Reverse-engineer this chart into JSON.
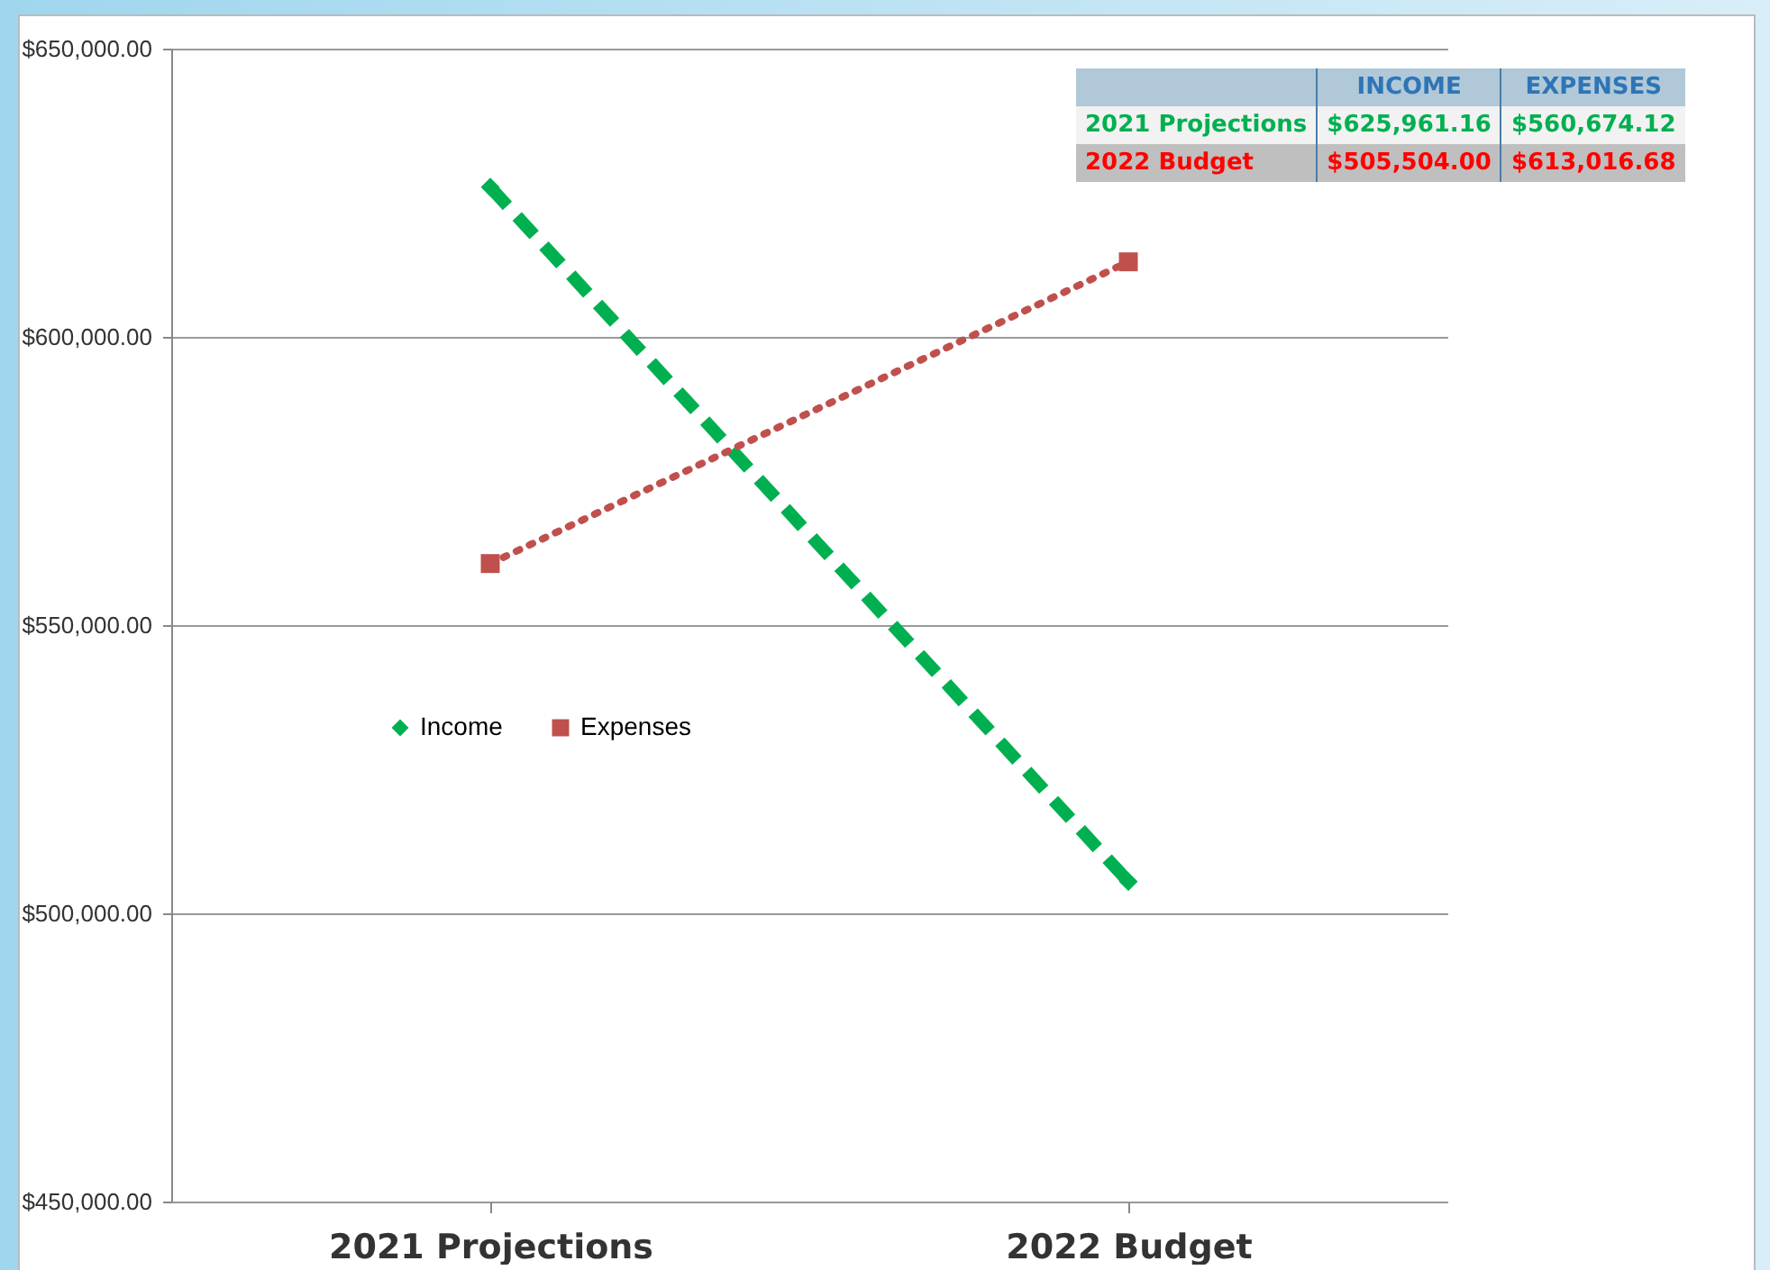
{
  "chart_data": {
    "type": "line",
    "categories": [
      "2021 Projections",
      "2022 Budget"
    ],
    "series": [
      {
        "name": "Income",
        "color": "#00b050",
        "values": [
          625961.16,
          505504.0
        ],
        "line_style": "dashed",
        "marker": "diamond"
      },
      {
        "name": "Expenses",
        "color": "#c0504d",
        "values": [
          560674.12,
          613016.68
        ],
        "line_style": "dotted",
        "marker": "square"
      }
    ],
    "annotations": [
      "INCOME",
      "EXPENSES",
      "2021 Projections",
      "$625,961.16",
      "$560,674.12",
      "2022 Budget",
      "$505,504.00",
      "$613,016.68"
    ],
    "ylim": [
      450000,
      650000
    ],
    "yticks": [
      {
        "value": 450000,
        "label": "$450,000.00"
      },
      {
        "value": 500000,
        "label": "$500,000.00"
      },
      {
        "value": 550000,
        "label": "$550,000.00"
      },
      {
        "value": 600000,
        "label": "$600,000.00"
      },
      {
        "value": 650000,
        "label": "$650,000.00"
      }
    ],
    "grid": "y",
    "legend": "left"
  }
}
